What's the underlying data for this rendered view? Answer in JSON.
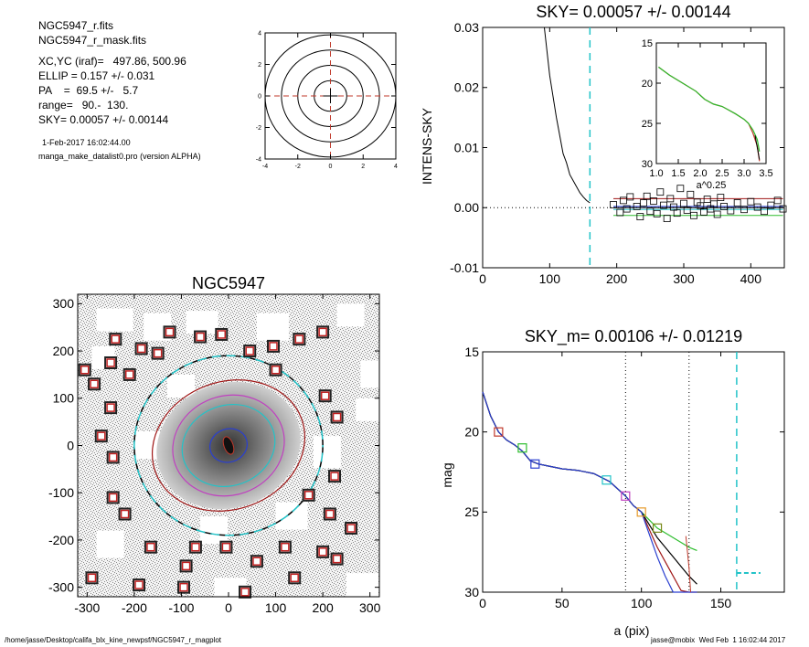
{
  "header": {
    "lines": [
      "NGC5947_r.fits",
      "NGC5947_r_mask.fits",
      "XC,YC (iraf)=   497.86, 500.96",
      "ELLIP = 0.157 +/- 0.031",
      "PA    =  69.5 +/-   5.7",
      "range=   90.-  130.",
      "SKY= 0.00057 +/- 0.00144"
    ],
    "date": "1-Feb-2017 16:02:44.00",
    "program": "manga_make_datalist0.pro (version ALPHA)"
  },
  "footer": {
    "path": "/home/jasse/Desktop/califa_blx_kine_newpsf/NGC5947_r_magplot",
    "user": "jasse@mobix  Wed Feb  1 16:02:44 2017"
  },
  "colors": {
    "red_dash": "#c0392b",
    "cyan": "#22c3c8",
    "green": "#2ebd2e",
    "dark_red": "#a01818",
    "blue": "#2a3fd0",
    "magenta": "#c040c0",
    "orange": "#e69a2a",
    "olive": "#7a8a1a"
  },
  "chart_data": [
    {
      "type": "line",
      "id": "ellipse-sketch",
      "xlim": [
        -4,
        4
      ],
      "ylim": [
        -4,
        4
      ],
      "xticks": [
        "-4",
        "-2",
        "0",
        "2",
        "4"
      ],
      "yticks": [
        "-4",
        "-2",
        "0",
        "2",
        "4"
      ],
      "ellipse_radii": [
        1,
        2,
        3,
        4
      ]
    },
    {
      "type": "scatter",
      "id": "sky-profile",
      "title": "SKY= 0.00057 +/- 0.00144",
      "ylabel": "INTENS-SKY",
      "xlim": [
        0,
        450
      ],
      "ylim": [
        -0.01,
        0.03
      ],
      "xticks": [
        "0",
        "100",
        "200",
        "300",
        "400"
      ],
      "yticks": [
        "-0.01",
        "0.00",
        "0.01",
        "0.02",
        "0.03"
      ],
      "cyan_dash_x": 160,
      "sky_levels": {
        "red": 0.0015,
        "blue": 0.0002,
        "cyan": -0.0003,
        "green": -0.0013
      },
      "profile_x": [
        92,
        100,
        110,
        120,
        125,
        130,
        135,
        140,
        145,
        150,
        155,
        160
      ],
      "profile_y": [
        0.03,
        0.022,
        0.015,
        0.009,
        0.0075,
        0.0055,
        0.0045,
        0.0035,
        0.0025,
        0.0018,
        0.0012,
        0.0008
      ],
      "points_x": [
        195,
        205,
        210,
        215,
        220,
        230,
        235,
        240,
        245,
        250,
        255,
        260,
        265,
        270,
        275,
        280,
        285,
        290,
        295,
        300,
        305,
        310,
        315,
        320,
        325,
        330,
        335,
        340,
        345,
        350,
        355,
        360,
        370,
        380,
        390,
        400,
        410,
        420,
        430,
        440,
        448
      ],
      "points_y": [
        0.0005,
        -0.0008,
        0.0012,
        -0.0002,
        0.0018,
        0.0002,
        -0.0015,
        0.0008,
        0.0019,
        -0.0006,
        0.0011,
        -0.001,
        0.0026,
        0.0004,
        -0.0018,
        0.0015,
        0.0001,
        -0.0009,
        0.0032,
        0.0007,
        -0.0004,
        0.0022,
        -0.0013,
        0.0009,
        0.0003,
        -0.0007,
        0.0014,
        -0.0002,
        0.0006,
        -0.0011,
        0.0017,
        0.0002,
        -0.0005,
        0.0008,
        -0.0003,
        0.001,
        0.0001,
        -0.0006,
        0.0004,
        0.0012,
        -0.0002
      ]
    },
    {
      "type": "line",
      "id": "sky-inset",
      "xlabel": "a^0.25",
      "xlim": [
        1.0,
        3.5
      ],
      "ylim": [
        15,
        30
      ],
      "xticks": [
        "1.0",
        "1.5",
        "2.0",
        "2.5",
        "3.0",
        "3.5"
      ],
      "yticks": [
        "15",
        "20",
        "25",
        "30"
      ],
      "x": [
        1.05,
        1.3,
        1.6,
        1.9,
        2.1,
        2.3,
        2.5,
        2.6,
        2.8,
        3.0,
        3.1,
        3.2,
        3.3,
        3.35
      ],
      "y": [
        18.0,
        19.0,
        20.0,
        21.0,
        22.0,
        22.6,
        22.9,
        23.2,
        23.8,
        24.5,
        25.0,
        25.8,
        27.0,
        28.5
      ]
    },
    {
      "type": "heatmap",
      "id": "galaxy-image",
      "title": "NGC5947",
      "xlim": [
        -320,
        320
      ],
      "ylim": [
        -320,
        320
      ],
      "xticks": [
        "-300",
        "-200",
        "-100",
        "0",
        "100",
        "200",
        "300"
      ],
      "yticks": [
        "-300",
        "-200",
        "-100",
        "0",
        "100",
        "200",
        "300"
      ],
      "masks": [
        [
          -240,
          225
        ],
        [
          -305,
          160
        ],
        [
          -250,
          175
        ],
        [
          -285,
          130
        ],
        [
          -210,
          150
        ],
        [
          -185,
          205
        ],
        [
          -150,
          195
        ],
        [
          -125,
          240
        ],
        [
          -60,
          230
        ],
        [
          -15,
          235
        ],
        [
          45,
          200
        ],
        [
          95,
          210
        ],
        [
          150,
          225
        ],
        [
          200,
          240
        ],
        [
          100,
          160
        ],
        [
          205,
          105
        ],
        [
          230,
          60
        ],
        [
          -250,
          80
        ],
        [
          -270,
          20
        ],
        [
          -245,
          -110
        ],
        [
          -165,
          -215
        ],
        [
          -90,
          -255
        ],
        [
          -70,
          -215
        ],
        [
          -5,
          -215
        ],
        [
          60,
          -245
        ],
        [
          120,
          -215
        ],
        [
          200,
          -225
        ],
        [
          215,
          -145
        ],
        [
          170,
          -105
        ],
        [
          225,
          -65
        ],
        [
          -220,
          -145
        ],
        [
          -245,
          -25
        ],
        [
          -290,
          -280
        ],
        [
          -190,
          -295
        ],
        [
          -95,
          -300
        ],
        [
          35,
          -310
        ],
        [
          140,
          -280
        ],
        [
          230,
          -240
        ],
        [
          260,
          -175
        ]
      ],
      "ellipses": [
        {
          "name": "inner",
          "rx": 40,
          "ry": 35
        },
        {
          "name": "cyan",
          "rx": 100,
          "ry": 85
        },
        {
          "name": "purple",
          "rx": 120,
          "ry": 105
        },
        {
          "name": "darkred",
          "rx": 165,
          "ry": 135
        },
        {
          "name": "dashed",
          "rx": 200,
          "ry": 190
        }
      ]
    },
    {
      "type": "line",
      "id": "mag-profile",
      "title": "SKY_m=  0.00106 +/- 0.01219",
      "xlabel": "a (pix)",
      "ylabel": "mag",
      "xlim": [
        0,
        190
      ],
      "ylim": [
        15,
        30
      ],
      "xticks": [
        "0",
        "50",
        "100",
        "150"
      ],
      "yticks": [
        "15",
        "20",
        "25",
        "30"
      ],
      "dotted_x": [
        90,
        130
      ],
      "cyan_dash_x": 160,
      "sky_mag": 28.8,
      "x": [
        0,
        5,
        10,
        15,
        20,
        25,
        30,
        35,
        40,
        50,
        60,
        70,
        80,
        90,
        95,
        100,
        105,
        110,
        115,
        120,
        125,
        130,
        135
      ],
      "y": [
        17.5,
        19.0,
        20.0,
        20.5,
        20.8,
        21.2,
        21.8,
        22.0,
        22.1,
        22.3,
        22.4,
        22.6,
        23.1,
        24.0,
        24.6,
        25.0,
        25.5,
        26.0,
        26.3,
        26.6,
        26.9,
        27.2,
        27.4
      ],
      "markers": [
        {
          "x": 10,
          "y": 20.0,
          "color": "#c0392b"
        },
        {
          "x": 25,
          "y": 21.0,
          "color": "#2ebd2e"
        },
        {
          "x": 33,
          "y": 22.0,
          "color": "#2a3fd0"
        },
        {
          "x": 78,
          "y": 23.0,
          "color": "#22c3c8"
        },
        {
          "x": 90,
          "y": 24.0,
          "color": "#c040c0"
        },
        {
          "x": 100,
          "y": 25.0,
          "color": "#e69a2a"
        },
        {
          "x": 110,
          "y": 26.0,
          "color": "#7a8a1a"
        }
      ]
    }
  ]
}
